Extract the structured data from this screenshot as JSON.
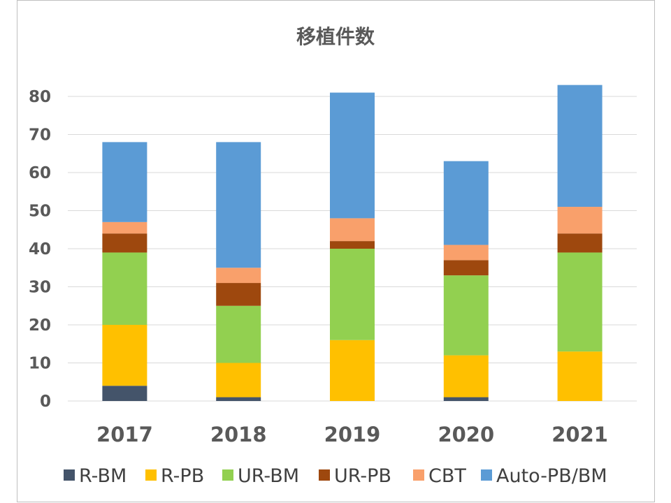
{
  "chart_data": {
    "type": "bar",
    "stacked": true,
    "title": "移植件数",
    "xlabel": "",
    "ylabel": "",
    "categories": [
      "2017",
      "2018",
      "2019",
      "2020",
      "2021"
    ],
    "yticks": [
      0,
      10,
      20,
      30,
      40,
      50,
      60,
      70,
      80
    ],
    "grid": true,
    "legend_position": "bottom",
    "series": [
      {
        "name": "R-BM",
        "color": "#44546A",
        "values": [
          4,
          1,
          0,
          1,
          0
        ]
      },
      {
        "name": "R-PB",
        "color": "#FFC000",
        "values": [
          16,
          9,
          16,
          11,
          13
        ]
      },
      {
        "name": "UR-BM",
        "color": "#92D050",
        "values": [
          19,
          15,
          24,
          21,
          26
        ]
      },
      {
        "name": "UR-PB",
        "color": "#9E480E",
        "values": [
          5,
          6,
          2,
          4,
          5
        ]
      },
      {
        "name": "CBT",
        "color": "#F9A06B",
        "values": [
          3,
          4,
          6,
          4,
          7
        ]
      },
      {
        "name": "Auto-PB/BM",
        "color": "#5B9BD5",
        "values": [
          21,
          33,
          33,
          22,
          32
        ]
      }
    ]
  }
}
